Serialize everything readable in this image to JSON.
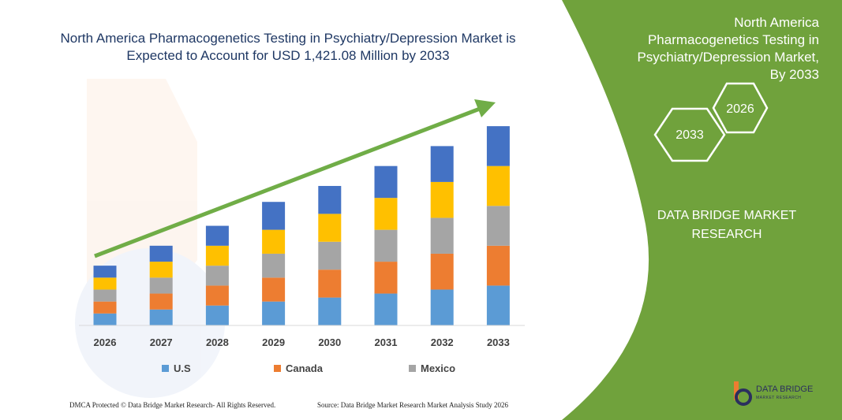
{
  "chart_title": "North America Pharmacogenetics Testing in Psychiatry/Depression Market is Expected to Account for  USD 1,421.08 Million by 2033",
  "panel": {
    "title": "North America Pharmacogenetics Testing in Psychiatry/Depression Market, By 2033",
    "hex_left": "2033",
    "hex_right": "2026",
    "brand": "DATA BRIDGE MARKET RESEARCH",
    "color": "#70a23c"
  },
  "footer": {
    "left": "DMCA Protected © Data Bridge Market Research-  All Rights Reserved.",
    "right": "Source: Data Bridge Market Research  Market Analysis Study 2026"
  },
  "logo": {
    "name": "DATA BRIDGE",
    "sub": "MARKET RESEARCH"
  },
  "legend": [
    {
      "label": "U.S",
      "color": "#5b9bd5"
    },
    {
      "label": "Canada",
      "color": "#ed7d31"
    },
    {
      "label": "Mexico",
      "color": "#a5a5a5"
    }
  ],
  "chart_data": {
    "type": "bar",
    "stacked": true,
    "categories": [
      "2026",
      "2027",
      "2028",
      "2029",
      "2030",
      "2031",
      "2032",
      "2033"
    ],
    "series": [
      {
        "name": "U.S",
        "color": "#5b9bd5",
        "values": [
          15,
          20,
          25,
          30,
          35,
          40,
          45,
          50
        ]
      },
      {
        "name": "Canada",
        "color": "#ed7d31",
        "values": [
          15,
          20,
          25,
          30,
          35,
          40,
          45,
          50
        ]
      },
      {
        "name": "Mexico",
        "color": "#a5a5a5",
        "values": [
          15,
          20,
          25,
          30,
          35,
          40,
          45,
          50
        ]
      },
      {
        "color": "#ffc000",
        "values": [
          15,
          20,
          25,
          30,
          35,
          40,
          45,
          50
        ]
      },
      {
        "color": "#4472c4",
        "values": [
          15,
          20,
          25,
          35,
          35,
          40,
          45,
          50
        ]
      }
    ],
    "ylim": [
      0,
      260
    ],
    "trend_arrow": true,
    "gridlines": false
  }
}
